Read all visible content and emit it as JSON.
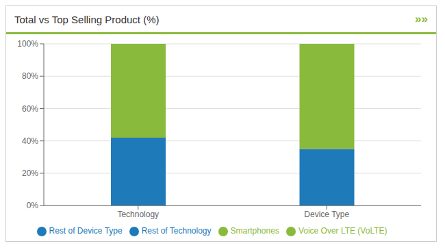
{
  "chart_data": {
    "type": "bar",
    "title": "Total vs Top Selling Product (%)",
    "categories": [
      "Technology",
      "Device Type"
    ],
    "series": [
      {
        "name": "Rest of Device Type",
        "color": "#1e7ab8",
        "values": [
          null,
          35
        ]
      },
      {
        "name": "Smartphones",
        "color": "#8aba3b",
        "values": [
          null,
          65
        ]
      },
      {
        "name": "Rest of Technology",
        "color": "#1e7ab8",
        "values": [
          42,
          null
        ]
      },
      {
        "name": "Voice Over LTE (VoLTE)",
        "color": "#8aba3b",
        "values": [
          58,
          null
        ]
      }
    ],
    "stacked": true,
    "ylim": [
      0,
      100
    ],
    "yticks": [
      {
        "value": 0,
        "label": "0%"
      },
      {
        "value": 20,
        "label": "20%"
      },
      {
        "value": 40,
        "label": "40%"
      },
      {
        "value": 60,
        "label": "60%"
      },
      {
        "value": 80,
        "label": "80%"
      },
      {
        "value": 100,
        "label": "100%"
      }
    ],
    "grid": true,
    "legend": "bottom",
    "annotations": [
      {
        "text": "»»",
        "color": "#8aba3b"
      }
    ]
  }
}
